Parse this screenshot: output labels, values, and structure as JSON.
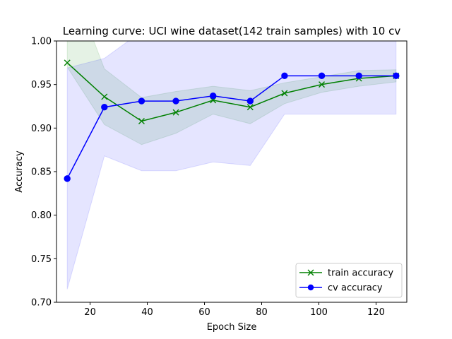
{
  "chart_data": {
    "type": "line",
    "title": "Learning curve: UCI wine dataset(142 train samples) with 10 cv",
    "xlabel": "Epoch Size",
    "ylabel": "Accuracy",
    "xlim": [
      8.25,
      130.75
    ],
    "ylim": [
      0.7,
      1.0
    ],
    "xticks": [
      20,
      40,
      60,
      80,
      100,
      120
    ],
    "yticks": [
      0.7,
      0.75,
      0.8,
      0.85,
      0.9,
      0.95,
      1.0
    ],
    "xtick_labels": [
      "20",
      "40",
      "60",
      "80",
      "100",
      "120"
    ],
    "ytick_labels": [
      "0.70",
      "0.75",
      "0.80",
      "0.85",
      "0.90",
      "0.95",
      "1.00"
    ],
    "grid": false,
    "legend_position": "lower-right",
    "x": [
      12,
      25,
      38,
      50,
      63,
      76,
      88,
      101,
      114,
      127
    ],
    "series": [
      {
        "name": "train accuracy",
        "color": "#008000",
        "marker": "x",
        "values": [
          0.975,
          0.936,
          0.908,
          0.918,
          0.932,
          0.924,
          0.94,
          0.95,
          0.957,
          0.96
        ],
        "band_lower": [
          0.97,
          0.904,
          0.881,
          0.894,
          0.916,
          0.905,
          0.928,
          0.941,
          0.948,
          0.953
        ],
        "band_upper": [
          1.08,
          0.968,
          0.935,
          0.942,
          0.948,
          0.943,
          0.952,
          0.959,
          0.966,
          0.967
        ],
        "band_color": "#008000"
      },
      {
        "name": "cv accuracy",
        "color": "#0000ff",
        "marker": "o",
        "values": [
          0.842,
          0.924,
          0.931,
          0.931,
          0.937,
          0.931,
          0.96,
          0.96,
          0.96,
          0.96
        ],
        "band_lower": [
          0.715,
          0.868,
          0.851,
          0.851,
          0.861,
          0.857,
          0.916,
          0.916,
          0.916,
          0.916
        ],
        "band_upper": [
          0.969,
          0.98,
          1.011,
          1.011,
          1.013,
          1.005,
          1.004,
          1.004,
          1.004,
          1.004
        ],
        "band_color": "#0000ff"
      }
    ]
  }
}
